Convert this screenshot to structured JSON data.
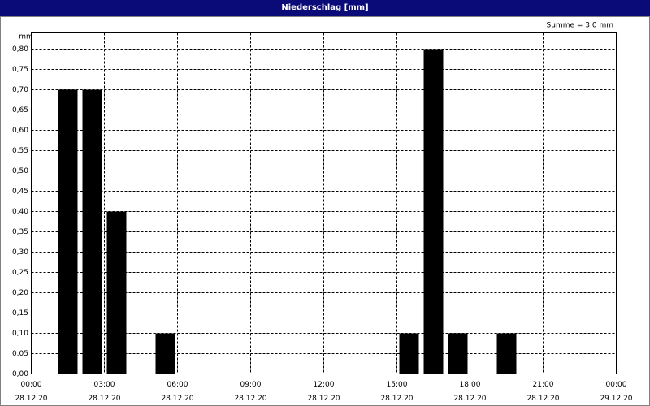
{
  "chart_data": {
    "type": "bar",
    "title": "Niederschlag [mm]",
    "annotation": "Summe = 3,0 mm",
    "y_label": "mm",
    "x": [
      1.5,
      2.5,
      3.5,
      5.5,
      15.5,
      16.5,
      17.5,
      19.5
    ],
    "values": [
      0.7,
      0.7,
      0.4,
      0.1,
      0.1,
      0.8,
      0.1,
      0.1
    ],
    "color": "#000000",
    "xlim": [
      0,
      24
    ],
    "xticks": [
      {
        "value": 0,
        "label": "00:00\n28.12.20"
      },
      {
        "value": 3,
        "label": "03:00\n28.12.20"
      },
      {
        "value": 6,
        "label": "06:00\n28.12.20"
      },
      {
        "value": 9,
        "label": "09:00\n28.12.20"
      },
      {
        "value": 12,
        "label": "12:00\n28.12.20"
      },
      {
        "value": 15,
        "label": "15:00\n28.12.20"
      },
      {
        "value": 18,
        "label": "18:00\n28.12.20"
      },
      {
        "value": 21,
        "label": "21:00\n28.12.20"
      },
      {
        "value": 24,
        "label": "00:00\n29.12.20"
      }
    ],
    "ylim": [
      0,
      0.84
    ],
    "yticks": [
      {
        "value": 0,
        "label": "0,00"
      },
      {
        "value": 0.05,
        "label": "0,05"
      },
      {
        "value": 0.1,
        "label": "0,10"
      },
      {
        "value": 0.15,
        "label": "0,15"
      },
      {
        "value": 0.2,
        "label": "0,20"
      },
      {
        "value": 0.25,
        "label": "0,25"
      },
      {
        "value": 0.3,
        "label": "0,30"
      },
      {
        "value": 0.35,
        "label": "0,35"
      },
      {
        "value": 0.4,
        "label": "0,40"
      },
      {
        "value": 0.45,
        "label": "0,45"
      },
      {
        "value": 0.5,
        "label": "0,50"
      },
      {
        "value": 0.55,
        "label": "0,55"
      },
      {
        "value": 0.6,
        "label": "0,60"
      },
      {
        "value": 0.65,
        "label": "0,65"
      },
      {
        "value": 0.7,
        "label": "0,70"
      },
      {
        "value": 0.75,
        "label": "0,75"
      },
      {
        "value": 0.8,
        "label": "0,80"
      }
    ],
    "grid": true
  }
}
